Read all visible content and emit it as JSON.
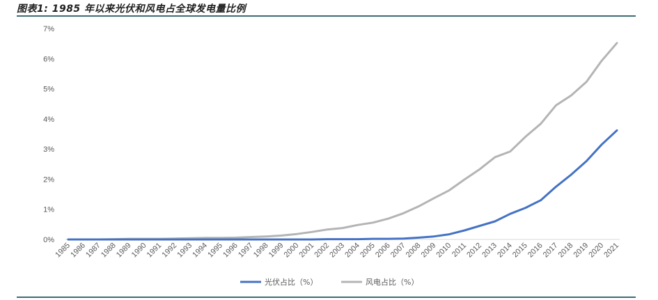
{
  "figure_title": "图表1: 1985 年以来光伏和风电占全球发电量比例",
  "colors": {
    "solar": "#4472C4",
    "wind": "#B4B4B4",
    "axis": "#D9D9D9",
    "rule": "#3B6C74"
  },
  "chart_data": {
    "type": "line",
    "x": [
      "1985",
      "1986",
      "1987",
      "1988",
      "1989",
      "1990",
      "1991",
      "1992",
      "1993",
      "1994",
      "1995",
      "1996",
      "1997",
      "1998",
      "1999",
      "2000",
      "2001",
      "2002",
      "2003",
      "2004",
      "2005",
      "2006",
      "2007",
      "2008",
      "2009",
      "2010",
      "2011",
      "2012",
      "2013",
      "2014",
      "2015",
      "2016",
      "2017",
      "2018",
      "2019",
      "2020",
      "2021"
    ],
    "series": [
      {
        "name": "光伏占比（%）",
        "color": "#4472C4",
        "values": [
          0,
          0,
          0,
          0,
          0,
          0,
          0,
          0,
          0,
          0,
          0,
          0,
          0,
          0,
          0,
          0,
          0,
          0.01,
          0.01,
          0.01,
          0.02,
          0.02,
          0.03,
          0.06,
          0.1,
          0.17,
          0.3,
          0.45,
          0.6,
          0.85,
          1.05,
          1.3,
          1.75,
          2.15,
          2.6,
          3.15,
          3.62
        ]
      },
      {
        "name": "风电占比（%）",
        "color": "#B4B4B4",
        "values": [
          0,
          0,
          0,
          0.01,
          0.02,
          0.02,
          0.02,
          0.03,
          0.04,
          0.05,
          0.05,
          0.06,
          0.08,
          0.1,
          0.13,
          0.18,
          0.25,
          0.33,
          0.38,
          0.48,
          0.56,
          0.69,
          0.87,
          1.1,
          1.37,
          1.63,
          1.99,
          2.33,
          2.73,
          2.92,
          3.41,
          3.84,
          4.45,
          4.78,
          5.23,
          5.93,
          6.52
        ]
      }
    ],
    "y_ticks": [
      "0%",
      "1%",
      "2%",
      "3%",
      "4%",
      "5%",
      "6%",
      "7%"
    ],
    "ylim": [
      0,
      7
    ],
    "grid": false,
    "legend_position": "bottom"
  }
}
